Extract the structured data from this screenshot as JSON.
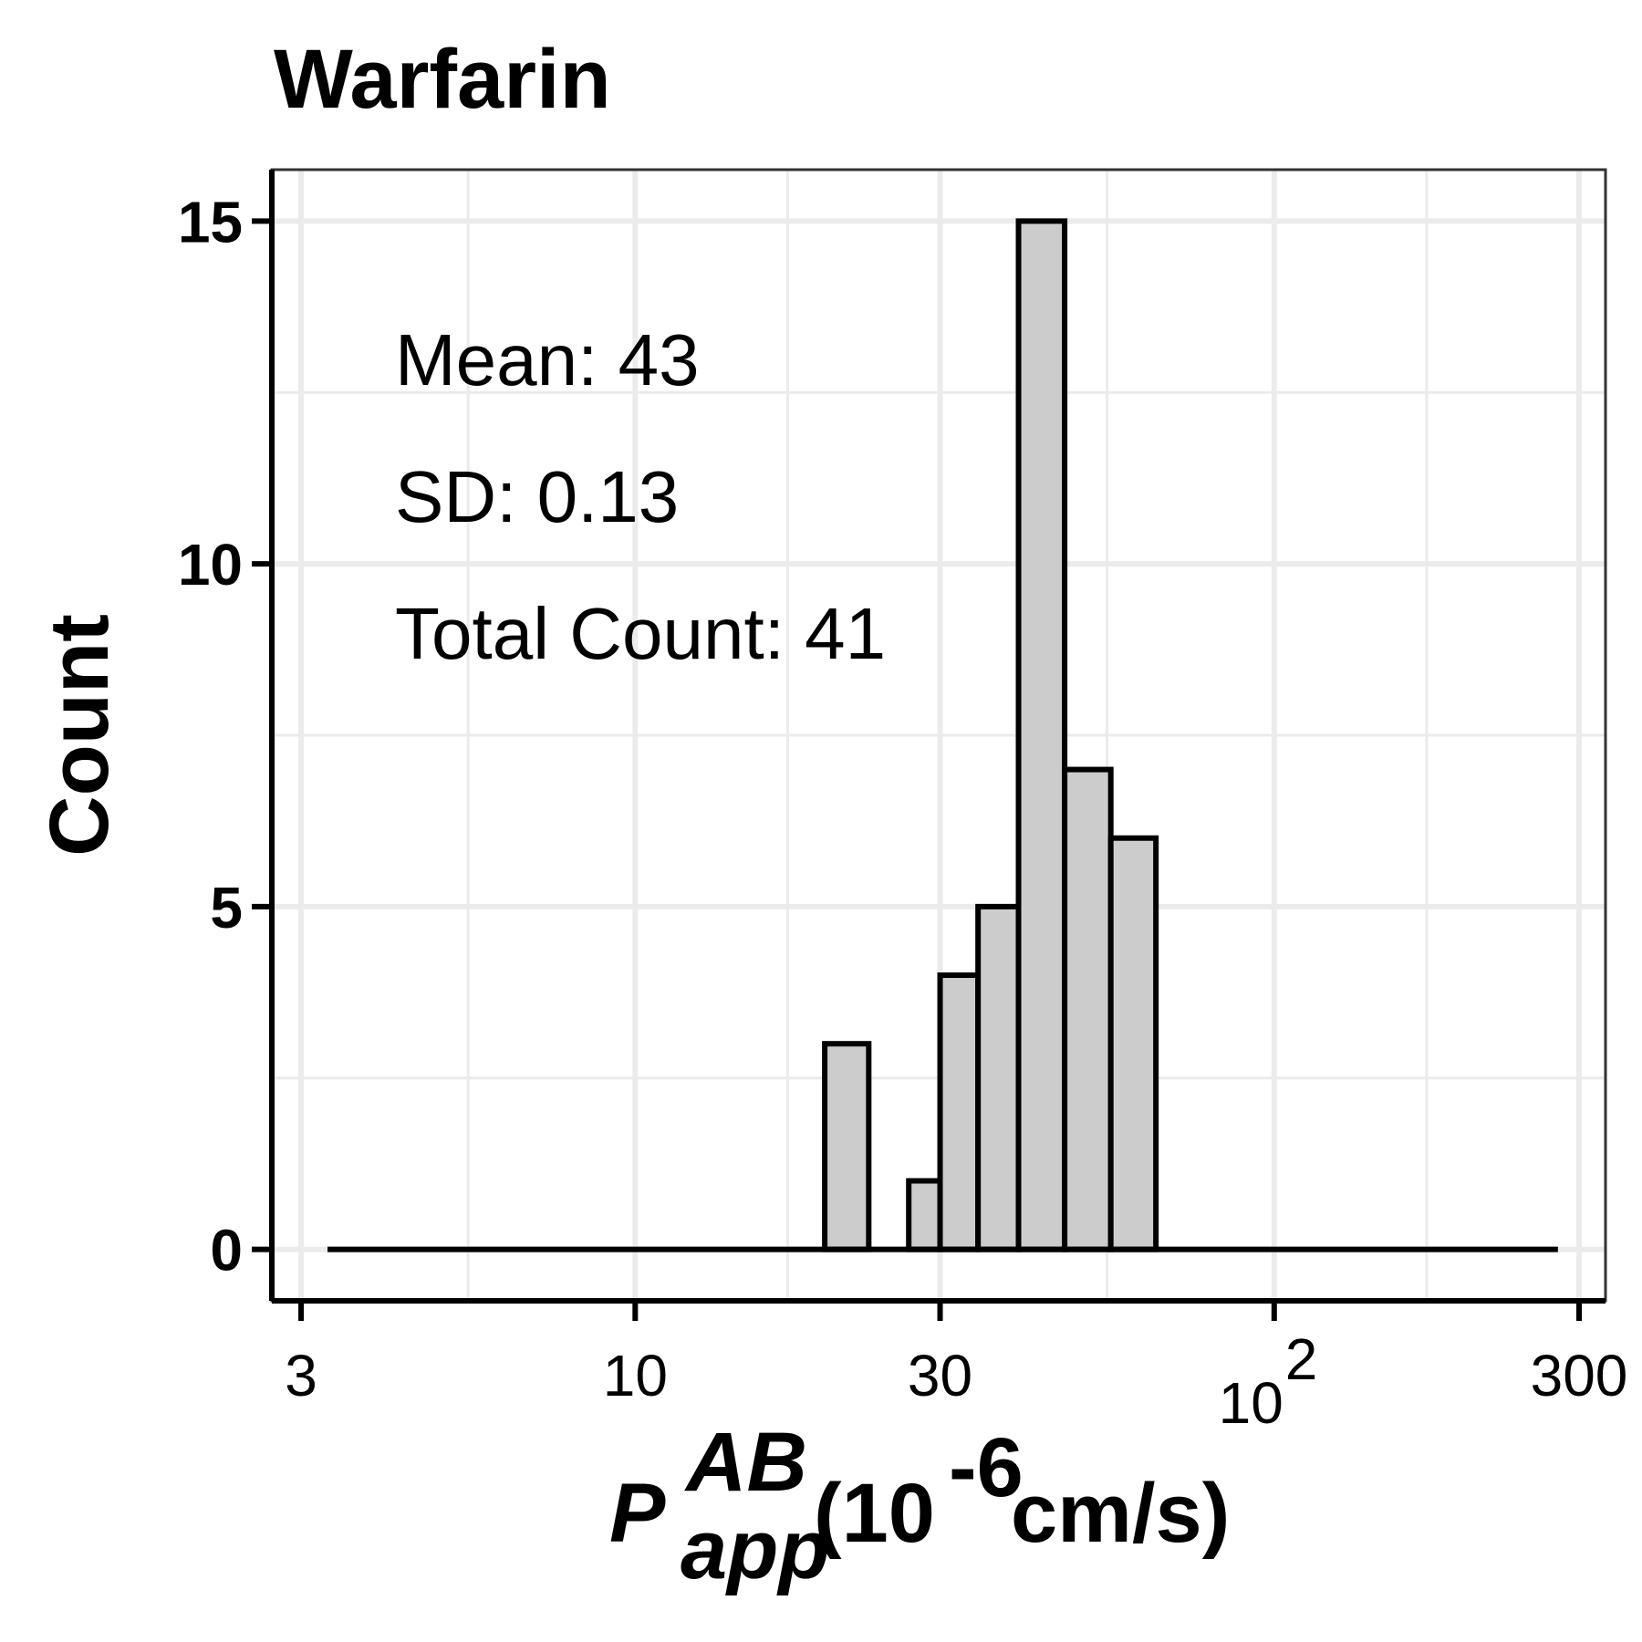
{
  "chart_data": {
    "type": "bar",
    "title": "Warfarin",
    "ylabel": "Count",
    "xlabel": {
      "symbol": "P",
      "superscript": "AB",
      "subscript": "app",
      "unit_prefix": "(10",
      "unit_exponent": "-6",
      "unit_suffix": " cm/s)"
    },
    "x_scale": "log",
    "xlim": [
      2.7,
      330
    ],
    "ylim": [
      -0.75,
      15.75
    ],
    "x_ticks": [
      {
        "value": 3,
        "label": "3"
      },
      {
        "value": 10,
        "label": "10"
      },
      {
        "value": 30,
        "label": "30"
      },
      {
        "value": 100,
        "label": "10",
        "exponent": "2"
      },
      {
        "value": 300,
        "label": "300"
      }
    ],
    "y_ticks": [
      {
        "value": 0,
        "label": "0"
      },
      {
        "value": 5,
        "label": "5"
      },
      {
        "value": 10,
        "label": "10"
      },
      {
        "value": 15,
        "label": "15"
      }
    ],
    "grid": true,
    "line_range": [
      3.3,
      278
    ],
    "bins": [
      {
        "x0": 19.8,
        "x1": 23.2,
        "count": 3
      },
      {
        "x0": 26.8,
        "x1": 30.0,
        "count": 1
      },
      {
        "x0": 30.0,
        "x1": 34.4,
        "count": 4
      },
      {
        "x0": 34.4,
        "x1": 39.8,
        "count": 5
      },
      {
        "x0": 39.8,
        "x1": 47.0,
        "count": 15
      },
      {
        "x0": 47.0,
        "x1": 55.5,
        "count": 7
      },
      {
        "x0": 55.5,
        "x1": 65.3,
        "count": 6
      }
    ],
    "annotations": [
      {
        "text": "Mean: 43"
      },
      {
        "text": "SD: 0.13"
      },
      {
        "text": "Total Count: 41"
      }
    ],
    "colors": {
      "bar_fill": "#cccccc",
      "bar_stroke": "#000000",
      "grid": "#ebebeb",
      "panel_border": "#333333"
    }
  }
}
